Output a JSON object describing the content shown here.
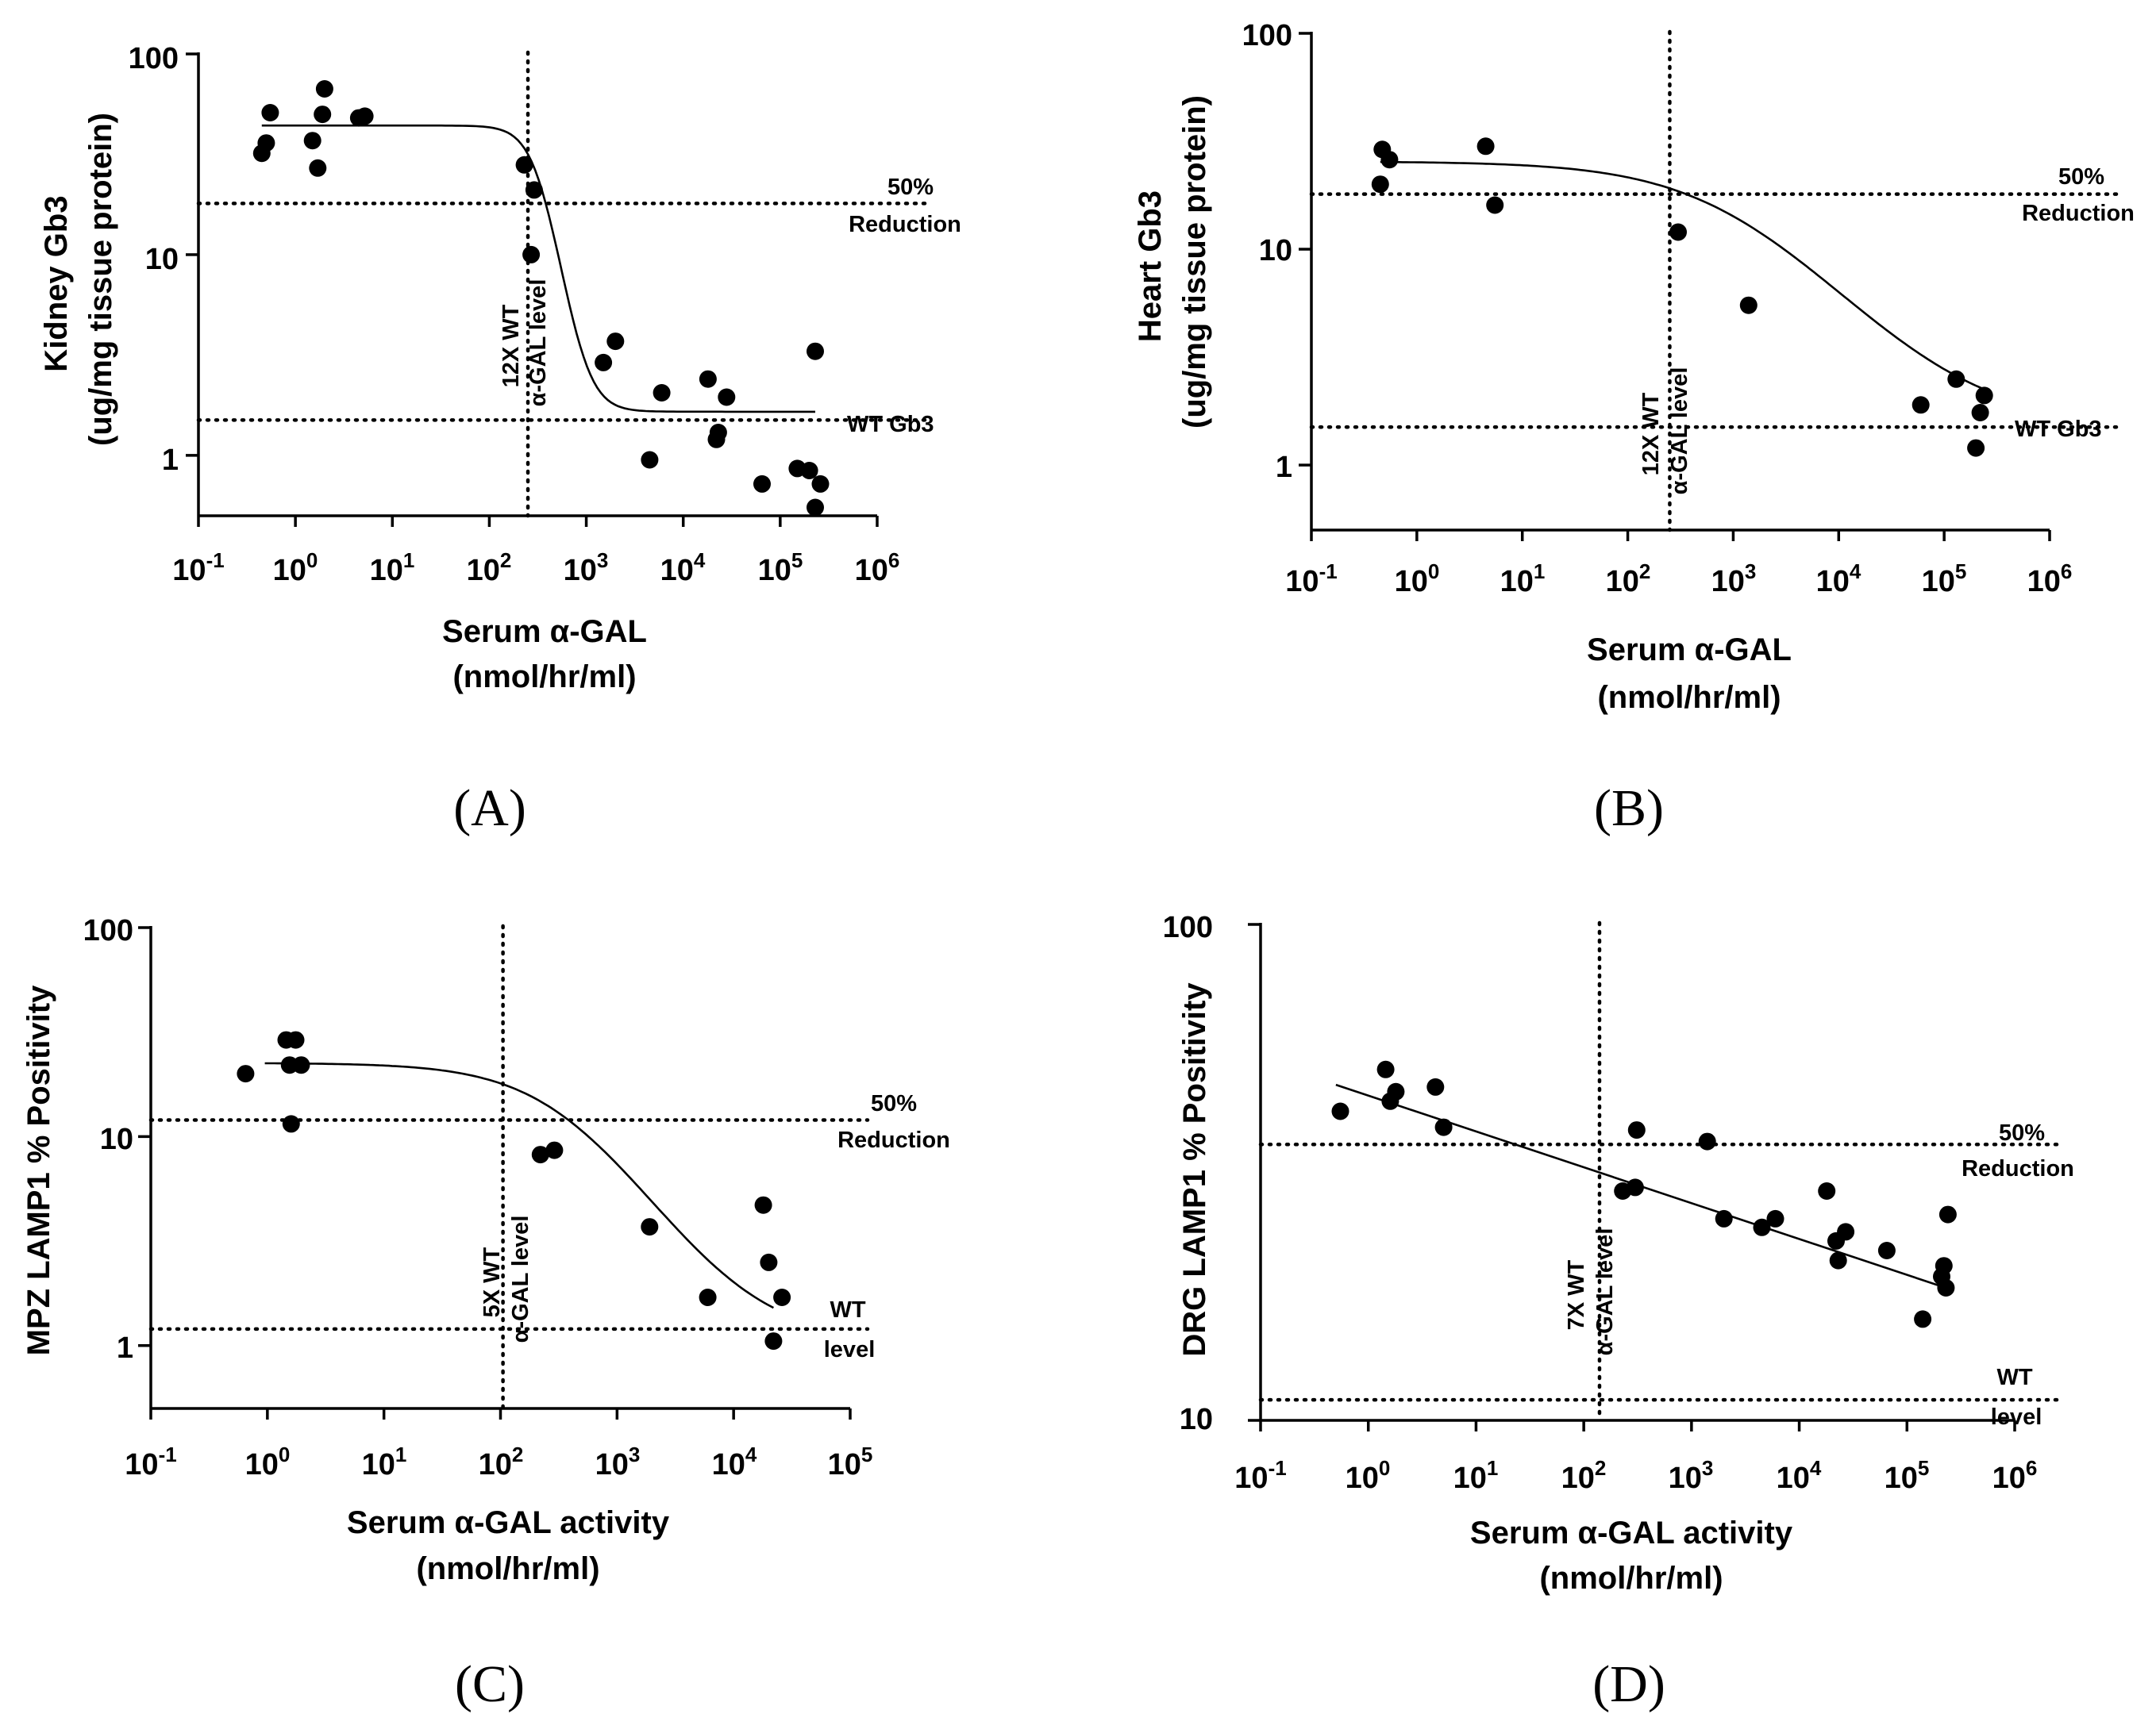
{
  "chart_data": [
    {
      "type": "scatter",
      "panel_label": "(A)",
      "xscale": "log",
      "yscale": "log",
      "xlim": [
        0.1,
        1000000
      ],
      "ylim": [
        0.5,
        100
      ],
      "x_ticks": [
        {
          "base": "10",
          "exp": "-1"
        },
        {
          "base": "10",
          "exp": "0"
        },
        {
          "base": "10",
          "exp": "1"
        },
        {
          "base": "10",
          "exp": "2"
        },
        {
          "base": "10",
          "exp": "3"
        },
        {
          "base": "10",
          "exp": "4"
        },
        {
          "base": "10",
          "exp": "5"
        },
        {
          "base": "10",
          "exp": "6"
        }
      ],
      "y_ticks": [
        "100",
        "10",
        "1"
      ],
      "ylabel": [
        "Kidney Gb3",
        "(ug/mg tissue protein)"
      ],
      "xlabel": [
        "Serum α-GAL",
        "(nmol/hr/ml)"
      ],
      "vline": {
        "x": 250,
        "label": [
          "12X WT",
          "α-GAL level"
        ]
      },
      "hlines": [
        {
          "y": 18,
          "label": [
            "50%",
            "Reduction"
          ]
        },
        {
          "y": 1.5,
          "label": [
            "WT Gb3"
          ]
        }
      ],
      "fit": {
        "model": "sigmoid",
        "top": 44,
        "bottom": 1.65,
        "ec50": 330,
        "hill": 3.2,
        "x_range": [
          0.45,
          230000
        ]
      },
      "points": [
        [
          0.45,
          32
        ],
        [
          0.5,
          36
        ],
        [
          0.55,
          51
        ],
        [
          1.5,
          37
        ],
        [
          1.7,
          27
        ],
        [
          1.9,
          50
        ],
        [
          2.0,
          67
        ],
        [
          4.5,
          48
        ],
        [
          5.2,
          49
        ],
        [
          230,
          28
        ],
        [
          270,
          10
        ],
        [
          290,
          21
        ],
        [
          1500,
          2.9
        ],
        [
          2000,
          3.7
        ],
        [
          4500,
          0.95
        ],
        [
          6000,
          2.05
        ],
        [
          18000,
          2.4
        ],
        [
          22000,
          1.2
        ],
        [
          23000,
          1.3
        ],
        [
          28000,
          1.95
        ],
        [
          65000,
          0.72
        ],
        [
          150000,
          0.86
        ],
        [
          200000,
          0.84
        ],
        [
          230000,
          3.3
        ],
        [
          230000,
          0.55
        ],
        [
          260000,
          0.72
        ]
      ]
    },
    {
      "type": "scatter",
      "panel_label": "(B)",
      "xscale": "log",
      "yscale": "log",
      "xlim": [
        0.1,
        1000000
      ],
      "ylim": [
        0.5,
        100
      ],
      "x_ticks": [
        {
          "base": "10",
          "exp": "-1"
        },
        {
          "base": "10",
          "exp": "0"
        },
        {
          "base": "10",
          "exp": "1"
        },
        {
          "base": "10",
          "exp": "2"
        },
        {
          "base": "10",
          "exp": "3"
        },
        {
          "base": "10",
          "exp": "4"
        },
        {
          "base": "10",
          "exp": "5"
        },
        {
          "base": "10",
          "exp": "6"
        }
      ],
      "y_ticks": [
        "100",
        "10",
        "1"
      ],
      "ylabel": [
        "Heart Gb3",
        "(ug/mg tissue protein)"
      ],
      "xlabel": [
        "Serum α-GAL",
        "(nmol/hr/ml)"
      ],
      "vline": {
        "x": 250,
        "label": [
          "12X WT",
          "α-GAL level"
        ]
      },
      "hlines": [
        {
          "y": 18,
          "label": [
            "50%",
            "Reduction"
          ]
        },
        {
          "y": 1.5,
          "label": [
            "WT Gb3"
          ]
        }
      ],
      "fit": {
        "model": "sigmoid",
        "top": 25.5,
        "bottom": 1.5,
        "ec50": 1200,
        "hill": 0.65,
        "x_range": [
          0.45,
          240000
        ]
      },
      "points": [
        [
          0.45,
          20
        ],
        [
          0.47,
          29
        ],
        [
          0.55,
          26
        ],
        [
          4.5,
          30
        ],
        [
          5.5,
          16
        ],
        [
          300,
          12
        ],
        [
          1400,
          5.5
        ],
        [
          60000,
          1.9
        ],
        [
          130000,
          2.5
        ],
        [
          200000,
          1.2
        ],
        [
          220000,
          1.75
        ],
        [
          240000,
          2.1
        ]
      ]
    },
    {
      "type": "scatter",
      "panel_label": "(C)",
      "xscale": "log",
      "yscale": "log",
      "xlim": [
        0.1,
        100000
      ],
      "ylim": [
        0.5,
        100
      ],
      "x_ticks": [
        {
          "base": "10",
          "exp": "-1"
        },
        {
          "base": "10",
          "exp": "0"
        },
        {
          "base": "10",
          "exp": "1"
        },
        {
          "base": "10",
          "exp": "2"
        },
        {
          "base": "10",
          "exp": "3"
        },
        {
          "base": "10",
          "exp": "4"
        },
        {
          "base": "10",
          "exp": "5"
        }
      ],
      "y_ticks": [
        "100",
        "10",
        "1"
      ],
      "ylabel": [
        "MPZ LAMP1 % Positivity"
      ],
      "xlabel": [
        "Serum α-GAL activity",
        "(nmol/hr/ml)"
      ],
      "vline": {
        "x": 105,
        "label": [
          "5X WT",
          "α-GAL level"
        ]
      },
      "hlines": [
        {
          "y": 12,
          "label": [
            "50%",
            "Reduction"
          ]
        },
        {
          "y": 1.2,
          "label": [
            "WT",
            "level"
          ]
        }
      ],
      "fit": {
        "model": "sigmoid",
        "top": 22.5,
        "bottom": 1.05,
        "ec50": 400,
        "hill": 0.95,
        "x_range": [
          0.95,
          22000
        ]
      },
      "points": [
        [
          0.65,
          20
        ],
        [
          1.45,
          29
        ],
        [
          1.55,
          22
        ],
        [
          1.6,
          11.5
        ],
        [
          1.75,
          29
        ],
        [
          1.95,
          22
        ],
        [
          220,
          8.2
        ],
        [
          290,
          8.6
        ],
        [
          1900,
          3.7
        ],
        [
          6000,
          1.7
        ],
        [
          18000,
          4.7
        ],
        [
          20000,
          2.5
        ],
        [
          22000,
          1.05
        ],
        [
          26000,
          1.7
        ]
      ]
    },
    {
      "type": "scatter",
      "panel_label": "(D)",
      "xscale": "log",
      "yscale": "log",
      "xlim": [
        0.1,
        1000000
      ],
      "ylim": [
        10,
        100
      ],
      "x_ticks": [
        {
          "base": "10",
          "exp": "-1"
        },
        {
          "base": "10",
          "exp": "0"
        },
        {
          "base": "10",
          "exp": "1"
        },
        {
          "base": "10",
          "exp": "2"
        },
        {
          "base": "10",
          "exp": "3"
        },
        {
          "base": "10",
          "exp": "4"
        },
        {
          "base": "10",
          "exp": "5"
        },
        {
          "base": "10",
          "exp": "6"
        }
      ],
      "y_ticks": [
        "100",
        "10"
      ],
      "ylabel": [
        "DRG LAMP1 % Positivity"
      ],
      "xlabel": [
        "Serum α-GAL activity",
        "(nmol/hr/ml)"
      ],
      "vline": {
        "x": 140,
        "label": [
          "7X WT",
          "α-GAL level"
        ]
      },
      "hlines": [
        {
          "y": 36,
          "label": [
            "50%",
            "Reduction"
          ]
        },
        {
          "y": 11,
          "label": [
            "WT",
            "level"
          ]
        }
      ],
      "fit": {
        "model": "loglinear",
        "x0": 0.5,
        "y0": 47.5,
        "x1": 230000,
        "y1": 18.5
      },
      "points": [
        [
          0.55,
          42
        ],
        [
          1.45,
          51
        ],
        [
          1.6,
          44
        ],
        [
          1.8,
          46
        ],
        [
          4.2,
          47
        ],
        [
          5.0,
          39
        ],
        [
          230,
          29
        ],
        [
          300,
          29.5
        ],
        [
          310,
          38.5
        ],
        [
          1400,
          36.5
        ],
        [
          2000,
          25.5
        ],
        [
          4500,
          24.5
        ],
        [
          6000,
          25.5
        ],
        [
          18000,
          29
        ],
        [
          22000,
          23
        ],
        [
          23000,
          21
        ],
        [
          27000,
          24
        ],
        [
          65000,
          22
        ],
        [
          140000,
          16
        ],
        [
          210000,
          19.5
        ],
        [
          220000,
          20.5
        ],
        [
          230000,
          18.5
        ],
        [
          240000,
          26
        ]
      ]
    }
  ]
}
